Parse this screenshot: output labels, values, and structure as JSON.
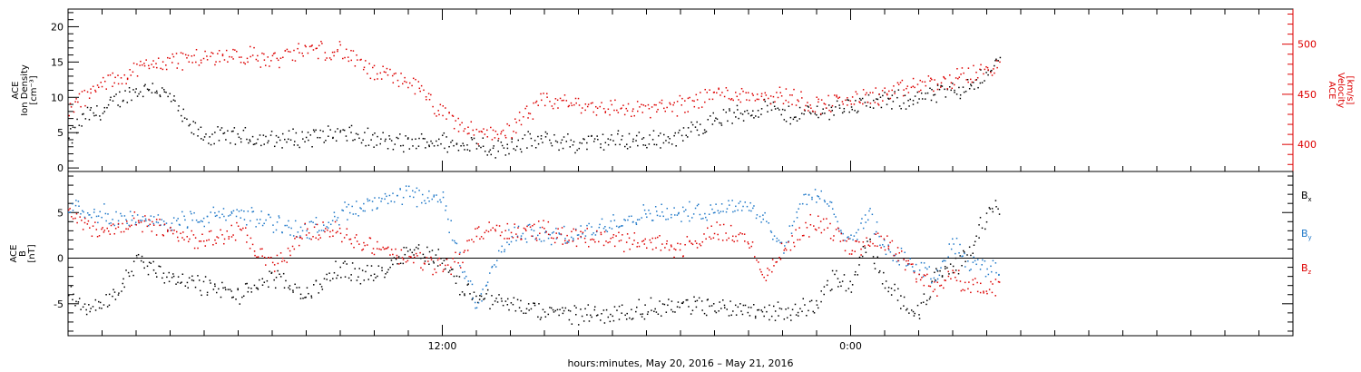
{
  "figure": {
    "xlabel": "hours:minutes, May 20, 2016 – May 21, 2016"
  },
  "chart_data": [
    {
      "type": "scatter",
      "panel": "top",
      "x_range_hours": [
        0,
        36
      ],
      "x_ticks": [
        {
          "hour": 11,
          "label": "12:00"
        },
        {
          "hour": 23,
          "label": "0:00"
        }
      ],
      "left_axis": {
        "label_lines": [
          "ACE",
          "Ion Density",
          "[cm⁻³]"
        ],
        "range": [
          -0.5,
          22.5
        ],
        "ticks": [
          0,
          5,
          10,
          15,
          20
        ],
        "color": "#000000"
      },
      "right_axis": {
        "label_lines": [
          "ACE",
          "Velocity",
          "[km/s]"
        ],
        "range": [
          373,
          535
        ],
        "ticks": [
          400,
          450,
          500
        ],
        "color": "#dd0000"
      },
      "series": [
        {
          "name": "Ion Density",
          "axis": "left",
          "color": "#000000",
          "points": [
            [
              0,
              4
            ],
            [
              0.5,
              7.5
            ],
            [
              1,
              8
            ],
            [
              1.5,
              10
            ],
            [
              2,
              11
            ],
            [
              2.5,
              11.5
            ],
            [
              3,
              10
            ],
            [
              3.5,
              6
            ],
            [
              4,
              4.5
            ],
            [
              5,
              4.5
            ],
            [
              6,
              4
            ],
            [
              7,
              4.5
            ],
            [
              8,
              5
            ],
            [
              9,
              4
            ],
            [
              10,
              3.5
            ],
            [
              11,
              4
            ],
            [
              11.5,
              3
            ],
            [
              12,
              4
            ],
            [
              12.5,
              2.5
            ],
            [
              13,
              3.5
            ],
            [
              14,
              4
            ],
            [
              15,
              3.5
            ],
            [
              16,
              4
            ],
            [
              17,
              4
            ],
            [
              18,
              4.5
            ],
            [
              18.5,
              6
            ],
            [
              19,
              7
            ],
            [
              20,
              8
            ],
            [
              20.5,
              9
            ],
            [
              21,
              7.5
            ],
            [
              22,
              8
            ],
            [
              23,
              9
            ],
            [
              24,
              9.5
            ],
            [
              25,
              10
            ],
            [
              26,
              11
            ],
            [
              27,
              13
            ],
            [
              27.4,
              16
            ]
          ]
        },
        {
          "name": "Velocity",
          "axis": "right",
          "color": "#dd0000",
          "points": [
            [
              0,
              435
            ],
            [
              1,
              460
            ],
            [
              2,
              475
            ],
            [
              3,
              485
            ],
            [
              4,
              487
            ],
            [
              5,
              490
            ],
            [
              6,
              485
            ],
            [
              7,
              495
            ],
            [
              8,
              495
            ],
            [
              9,
              470
            ],
            [
              10,
              465
            ],
            [
              11,
              430
            ],
            [
              12,
              410
            ],
            [
              13,
              415
            ],
            [
              14,
              445
            ],
            [
              15,
              440
            ],
            [
              16,
              437
            ],
            [
              17,
              435
            ],
            [
              18,
              440
            ],
            [
              19,
              452
            ],
            [
              20,
              450
            ],
            [
              21,
              450
            ],
            [
              22,
              440
            ],
            [
              23,
              445
            ],
            [
              24,
              450
            ],
            [
              25,
              460
            ],
            [
              26,
              465
            ],
            [
              27,
              475
            ],
            [
              27.4,
              480
            ]
          ]
        }
      ]
    },
    {
      "type": "scatter",
      "panel": "bottom",
      "x_range_hours": [
        0,
        36
      ],
      "x_ticks": [
        {
          "hour": 11,
          "label": "12:00"
        },
        {
          "hour": 23,
          "label": "0:00"
        }
      ],
      "left_axis": {
        "label_lines": [
          "ACE",
          "B",
          "[nT]"
        ],
        "range": [
          -8.5,
          9.5
        ],
        "ticks": [
          -5,
          0,
          5
        ],
        "color": "#000000"
      },
      "zero_line": true,
      "series": [
        {
          "name": "Bx",
          "legend_base": "B",
          "legend_sub": "x",
          "color": "#000000",
          "points": [
            [
              0,
              -4
            ],
            [
              0.5,
              -5.5
            ],
            [
              1,
              -5
            ],
            [
              1.5,
              -3.5
            ],
            [
              2,
              0
            ],
            [
              2.5,
              -1
            ],
            [
              3,
              -2
            ],
            [
              4,
              -3
            ],
            [
              5,
              -4
            ],
            [
              6,
              -2
            ],
            [
              7,
              -4
            ],
            [
              8,
              -1
            ],
            [
              9,
              -2
            ],
            [
              10,
              1
            ],
            [
              11,
              0
            ],
            [
              11.5,
              -3
            ],
            [
              12,
              -4
            ],
            [
              13,
              -5
            ],
            [
              14,
              -6
            ],
            [
              16,
              -6
            ],
            [
              18,
              -5
            ],
            [
              20,
              -5.5
            ],
            [
              21,
              -6
            ],
            [
              22,
              -5
            ],
            [
              22.5,
              -2
            ],
            [
              23,
              -3
            ],
            [
              23.5,
              2
            ],
            [
              24,
              -3
            ],
            [
              25,
              -6
            ],
            [
              25.5,
              -2
            ],
            [
              26,
              -1
            ],
            [
              26.5,
              1
            ],
            [
              27,
              5
            ],
            [
              27.4,
              6
            ]
          ]
        },
        {
          "name": "By",
          "legend_base": "B",
          "legend_sub": "y",
          "color": "#1f78c8",
          "points": [
            [
              0,
              6
            ],
            [
              1,
              5
            ],
            [
              2,
              4
            ],
            [
              3,
              4
            ],
            [
              4,
              4.5
            ],
            [
              5,
              5
            ],
            [
              6,
              4
            ],
            [
              7,
              3
            ],
            [
              8,
              5
            ],
            [
              9,
              6
            ],
            [
              10,
              7
            ],
            [
              11,
              6.5
            ],
            [
              11.5,
              0
            ],
            [
              12,
              -5
            ],
            [
              13,
              3
            ],
            [
              14,
              2.5
            ],
            [
              15,
              2.5
            ],
            [
              16,
              4
            ],
            [
              17,
              5
            ],
            [
              18,
              5
            ],
            [
              19,
              5.5
            ],
            [
              20,
              6
            ],
            [
              20.5,
              4
            ],
            [
              21,
              1
            ],
            [
              21.5,
              6
            ],
            [
              22,
              7
            ],
            [
              22.5,
              5
            ],
            [
              23,
              2
            ],
            [
              23.5,
              5
            ],
            [
              24,
              1
            ],
            [
              25,
              -1
            ],
            [
              25.5,
              -2
            ],
            [
              26,
              2
            ],
            [
              26.5,
              -0.5
            ],
            [
              27,
              -1
            ],
            [
              27.4,
              -1
            ]
          ]
        },
        {
          "name": "Bz",
          "legend_base": "B",
          "legend_sub": "z",
          "color": "#dd0000",
          "points": [
            [
              0,
              5
            ],
            [
              1,
              3
            ],
            [
              2,
              4
            ],
            [
              3,
              3
            ],
            [
              4,
              2
            ],
            [
              5,
              3
            ],
            [
              6,
              -1
            ],
            [
              7,
              3
            ],
            [
              8,
              3
            ],
            [
              9,
              1
            ],
            [
              10,
              0
            ],
            [
              11,
              -1
            ],
            [
              11.5,
              0
            ],
            [
              12,
              3
            ],
            [
              13,
              3
            ],
            [
              14,
              3
            ],
            [
              15,
              2.5
            ],
            [
              16,
              2
            ],
            [
              17,
              2
            ],
            [
              18,
              1
            ],
            [
              19,
              3
            ],
            [
              20,
              2
            ],
            [
              20.5,
              -2
            ],
            [
              21,
              1
            ],
            [
              21.5,
              3
            ],
            [
              22,
              4
            ],
            [
              22.5,
              3
            ],
            [
              23,
              1
            ],
            [
              23.5,
              2
            ],
            [
              24,
              2
            ],
            [
              25,
              -2
            ],
            [
              25.5,
              -3
            ],
            [
              26,
              -2
            ],
            [
              26.5,
              -3
            ],
            [
              27,
              -3
            ],
            [
              27.4,
              -3
            ]
          ]
        }
      ]
    }
  ]
}
